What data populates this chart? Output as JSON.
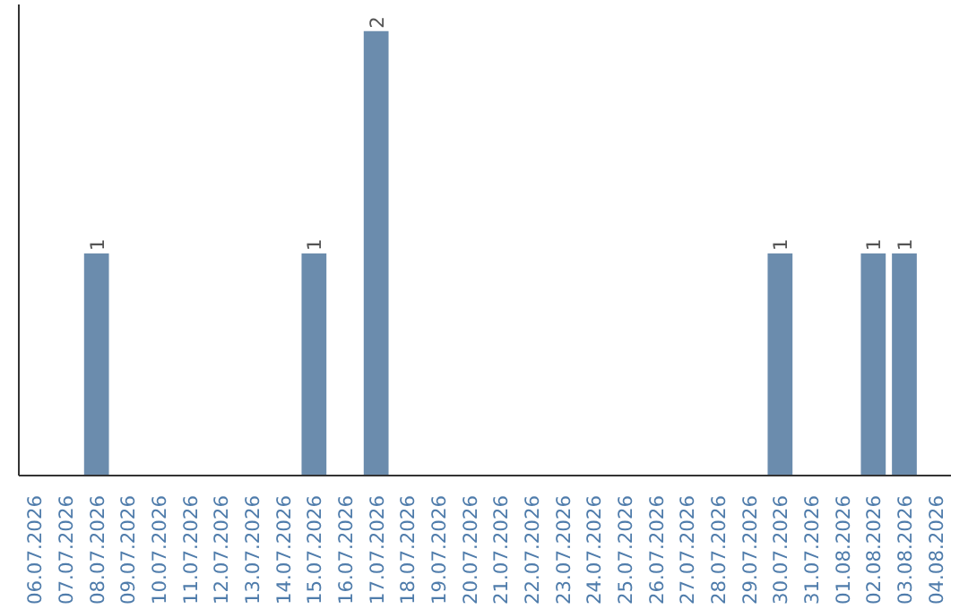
{
  "chart_data": {
    "type": "bar",
    "categories": [
      "06.07.2026",
      "07.07.2026",
      "08.07.2026",
      "09.07.2026",
      "10.07.2026",
      "11.07.2026",
      "12.07.2026",
      "13.07.2026",
      "14.07.2026",
      "15.07.2026",
      "16.07.2026",
      "17.07.2026",
      "18.07.2026",
      "19.07.2026",
      "20.07.2026",
      "21.07.2026",
      "22.07.2026",
      "23.07.2026",
      "24.07.2026",
      "25.07.2026",
      "26.07.2026",
      "27.07.2026",
      "28.07.2026",
      "29.07.2026",
      "30.07.2026",
      "31.07.2026",
      "01.08.2026",
      "02.08.2026",
      "03.08.2026",
      "04.08.2026"
    ],
    "values": [
      0,
      0,
      1,
      0,
      0,
      0,
      0,
      0,
      0,
      1,
      0,
      2,
      0,
      0,
      0,
      0,
      0,
      0,
      0,
      0,
      0,
      0,
      0,
      0,
      1,
      0,
      0,
      1,
      1,
      0
    ],
    "color": "#6b8cad",
    "ylim": [
      0,
      2
    ],
    "tick_labels": "x",
    "value_labels": [
      null,
      null,
      "1",
      null,
      null,
      null,
      null,
      null,
      null,
      "1",
      null,
      "2",
      null,
      null,
      null,
      null,
      null,
      null,
      null,
      null,
      null,
      null,
      null,
      null,
      "1",
      null,
      null,
      "1",
      "1",
      null
    ]
  }
}
